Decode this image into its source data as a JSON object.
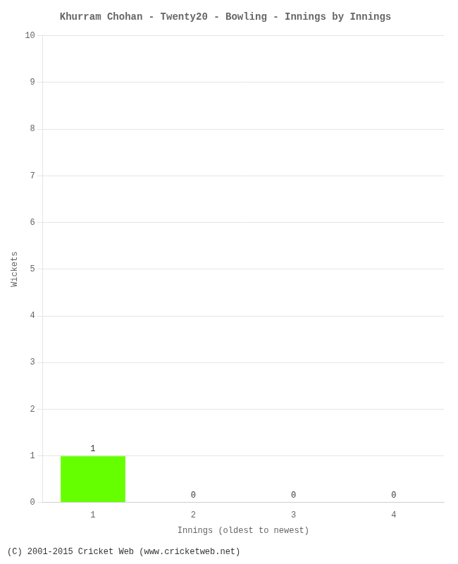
{
  "chart_data": {
    "type": "bar",
    "title": "Khurram Chohan - Twenty20 - Bowling - Innings by Innings",
    "xlabel": "Innings (oldest to newest)",
    "ylabel": "Wickets",
    "categories": [
      "1",
      "2",
      "3",
      "4"
    ],
    "values": [
      1,
      0,
      0,
      0
    ],
    "color": "#66ff00",
    "ylim": [
      0,
      10
    ],
    "yticks": [
      0,
      1,
      2,
      3,
      4,
      5,
      6,
      7,
      8,
      9,
      10
    ],
    "grid": true,
    "data_labels": true,
    "annotations": [
      "(C) 2001-2015 Cricket Web (www.cricketweb.net)"
    ]
  }
}
